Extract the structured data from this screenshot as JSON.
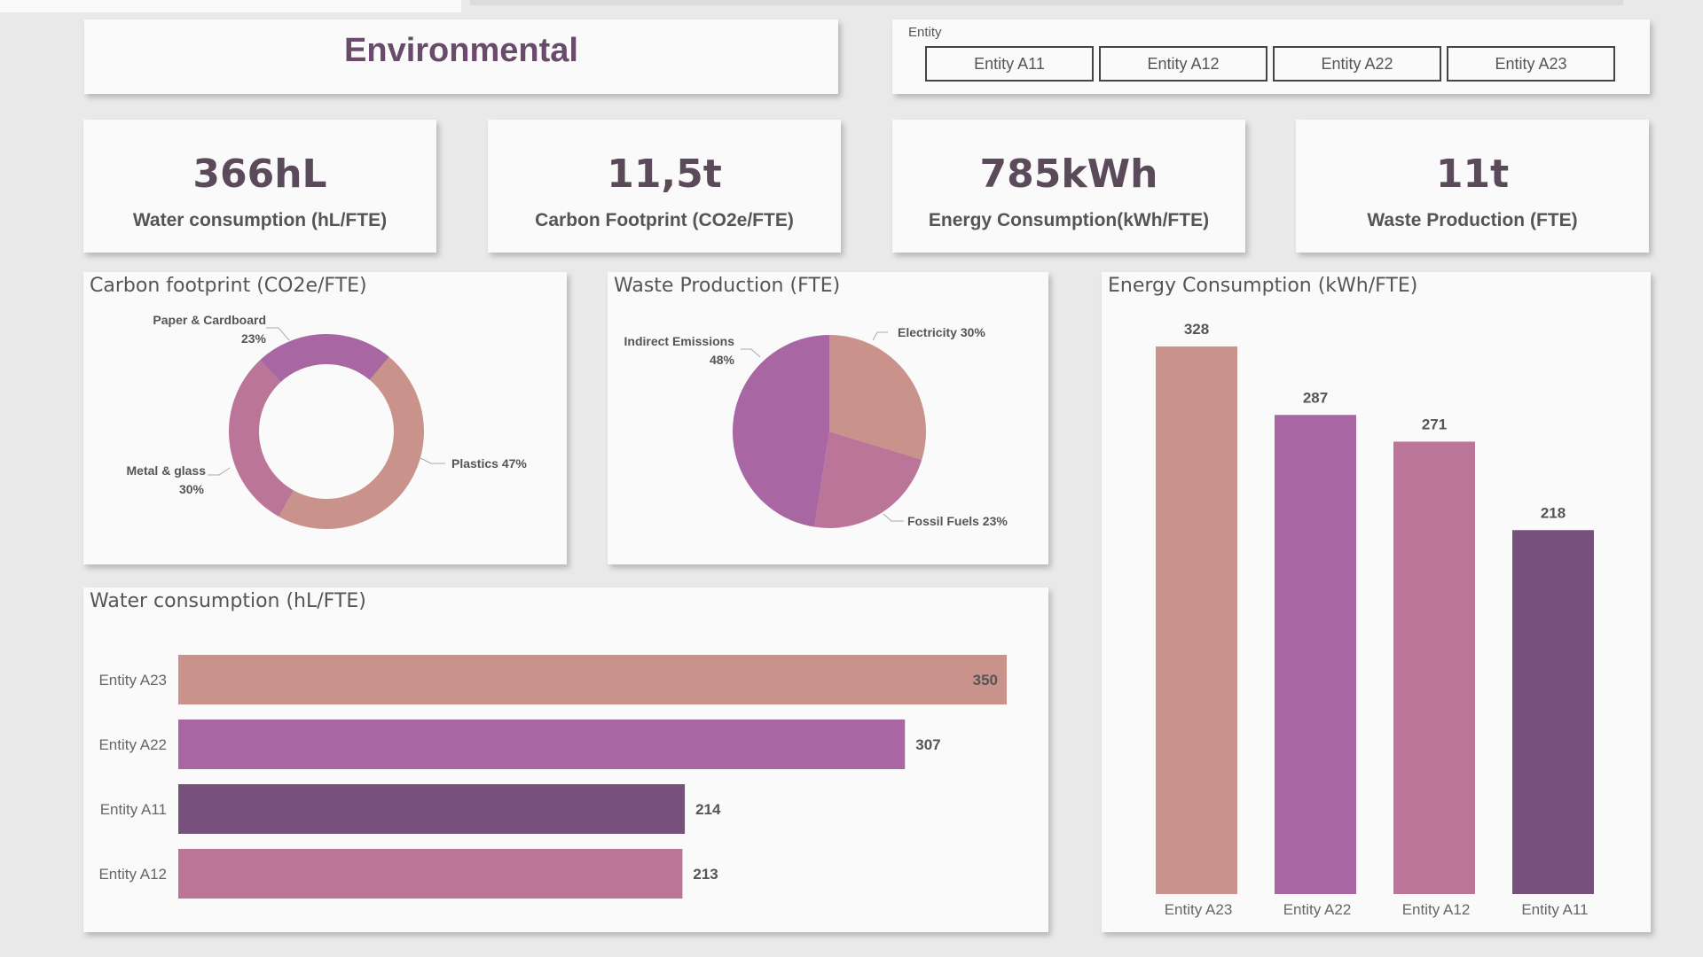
{
  "page": {
    "title": "Environmental",
    "slicer": {
      "label": "Entity",
      "options": [
        "Entity A11",
        "Entity A12",
        "Entity A22",
        "Entity A23"
      ]
    },
    "kpis": [
      {
        "value": "366hL",
        "label": "Water consumption (hL/FTE)"
      },
      {
        "value": "11,5t",
        "label": "Carbon Footprint (CO2e/FTE)"
      },
      {
        "value": "785kWh",
        "label": "Energy Consumption(kWh/FTE)"
      },
      {
        "value": "11t",
        "label": "Waste Production (FTE)"
      }
    ]
  },
  "colors": {
    "salmon": "#c9938c",
    "purple": "#a867a3",
    "dark_purple": "#78507c",
    "rose": "#bb7599"
  },
  "chart_data": [
    {
      "type": "pie",
      "variant": "donut",
      "title": "Carbon footprint (CO2e/FTE)",
      "slices": [
        {
          "name": "Plastics",
          "value": 47,
          "label": "Plastics 47%"
        },
        {
          "name": "Metal & glass",
          "value": 30,
          "label_name": "Metal & glass",
          "label_pct": "30%"
        },
        {
          "name": "Paper & Cardboard",
          "value": 23,
          "label_name": "Paper & Cardboard",
          "label_pct": "23%"
        }
      ]
    },
    {
      "type": "pie",
      "title": "Waste Production (FTE)",
      "slices": [
        {
          "name": "Electricity",
          "value": 30,
          "label": "Electricity 30%"
        },
        {
          "name": "Fossil Fuels",
          "value": 23,
          "label": "Fossil Fuels 23%"
        },
        {
          "name": "Indirect Emissions",
          "value": 48,
          "label_name": "Indirect Emissions",
          "label_pct": "48%"
        }
      ]
    },
    {
      "type": "bar",
      "orientation": "vertical",
      "title": "Energy Consumption (kWh/FTE)",
      "categories": [
        "Entity A23",
        "Entity A22",
        "Entity A12",
        "Entity A11"
      ],
      "values": [
        328,
        287,
        271,
        218
      ],
      "ylim": [
        0,
        328
      ]
    },
    {
      "type": "bar",
      "orientation": "horizontal",
      "title": "Water consumption (hL/FTE)",
      "categories": [
        "Entity A23",
        "Entity A22",
        "Entity A11",
        "Entity A12"
      ],
      "values": [
        350,
        307,
        214,
        213
      ],
      "xlim": [
        0,
        350
      ]
    }
  ]
}
